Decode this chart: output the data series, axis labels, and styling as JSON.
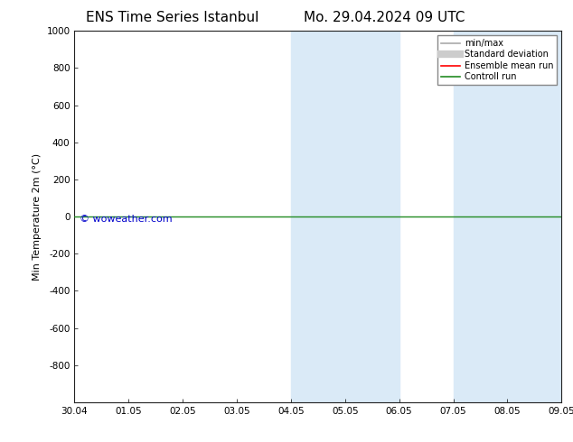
{
  "title_left": "ENS Time Series Istanbul",
  "title_right": "Mo. 29.04.2024 09 UTC",
  "ylabel": "Min Temperature 2m (°C)",
  "ylim_top": -1000,
  "ylim_bottom": 1000,
  "yticks": [
    -800,
    -600,
    -400,
    -200,
    0,
    200,
    400,
    600,
    800,
    1000
  ],
  "xtick_labels": [
    "30.04",
    "01.05",
    "02.05",
    "03.05",
    "04.05",
    "05.05",
    "06.05",
    "07.05",
    "08.05",
    "09.05"
  ],
  "xtick_positions": [
    0,
    1,
    2,
    3,
    4,
    5,
    6,
    7,
    8,
    9
  ],
  "shaded_bands": [
    {
      "x_start": 4.0,
      "x_end": 5.0,
      "color": "#daeaf7"
    },
    {
      "x_start": 5.0,
      "x_end": 6.0,
      "color": "#daeaf7"
    },
    {
      "x_start": 7.0,
      "x_end": 8.0,
      "color": "#daeaf7"
    },
    {
      "x_start": 8.0,
      "x_end": 9.0,
      "color": "#daeaf7"
    }
  ],
  "horizontal_line_y": 0,
  "horizontal_line_color": "#228B22",
  "watermark_text": "© woweather.com",
  "watermark_color": "#0000cc",
  "legend_items": [
    {
      "label": "min/max",
      "color": "#aaaaaa",
      "lw": 1.2
    },
    {
      "label": "Standard deviation",
      "color": "#cccccc",
      "lw": 6
    },
    {
      "label": "Ensemble mean run",
      "color": "#ff0000",
      "lw": 1.2
    },
    {
      "label": "Controll run",
      "color": "#228B22",
      "lw": 1.2
    }
  ],
  "background_color": "#ffffff",
  "title_fontsize": 11,
  "axis_label_fontsize": 8,
  "tick_fontsize": 7.5
}
